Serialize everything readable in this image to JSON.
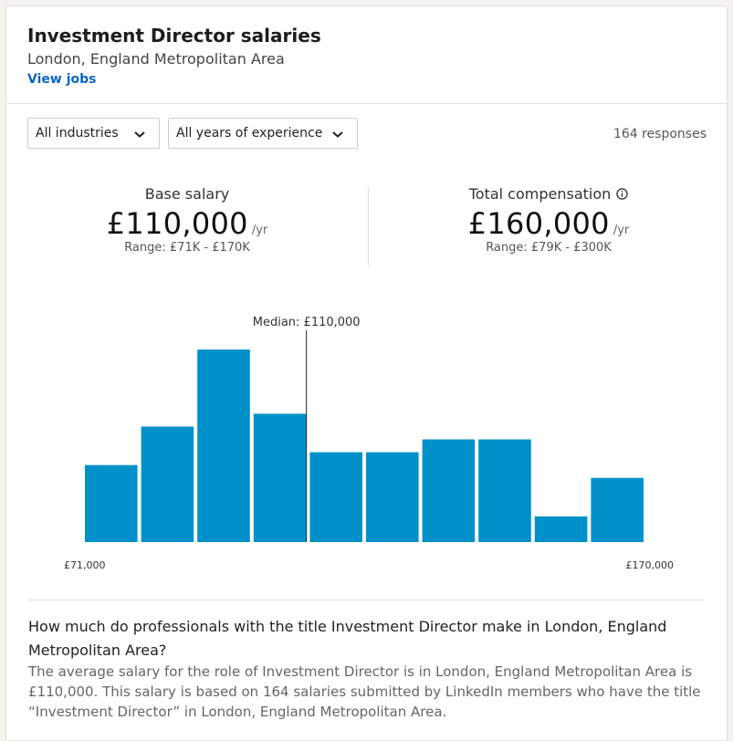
{
  "header": {
    "title": "Investment Director salaries",
    "location": "London, England Metropolitan Area",
    "view_jobs": "View jobs"
  },
  "filters": {
    "industry": "All industries",
    "experience": "All years of experience",
    "responses": "164 responses"
  },
  "base_salary": {
    "label": "Base salary",
    "amount": "£110,000",
    "unit": "/yr",
    "range": "Range: £71K - £170K"
  },
  "total_compensation": {
    "label": "Total compensation",
    "amount": "£160,000",
    "unit": "/yr",
    "range": "Range: £79K - £300K"
  },
  "colors": {
    "bar": "#0091ca",
    "link": "#0a66c2"
  },
  "icons": {
    "dropdown": "chevron-down-icon",
    "info": "info-icon"
  },
  "chart_data": {
    "type": "bar",
    "median_label": "Median: £110,000",
    "median": 110000,
    "x_min": 71000,
    "x_max": 170000,
    "x_min_label": "£71,000",
    "x_max_label": "£170,000",
    "values": [
      6,
      9,
      15,
      10,
      7,
      7,
      8,
      8,
      2,
      5
    ],
    "ylim": [
      0,
      16
    ]
  },
  "faq": {
    "question": "How much do professionals with the title Investment Director make in London, England Metropolitan Area?",
    "answer": "The average salary for the role of Investment Director is in London, England Metropolitan Area is £110,000. This salary is based on 164 salaries submitted by LinkedIn members who have the title “Investment Director” in London, England Metropolitan Area."
  }
}
